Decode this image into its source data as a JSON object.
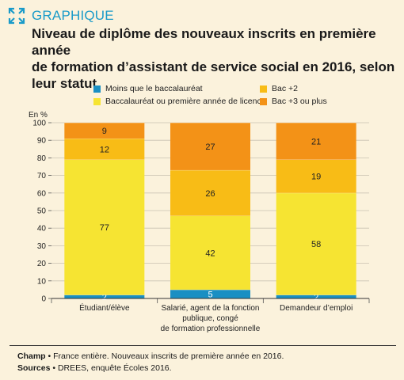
{
  "header": {
    "tag": "GRAPHIQUE",
    "title_lines": [
      "Niveau de diplôme des nouveaux inscrits en première année",
      "de formation d’assistant de service social en 2016, selon",
      "leur statut"
    ]
  },
  "colors": {
    "accent": "#1a9bc9",
    "background": "#fbf2dc",
    "moins_bac": "#1a8fc3",
    "bac": "#f6e432",
    "bac2": "#f8bc16",
    "bac3": "#f39217"
  },
  "chart_data": {
    "type": "bar",
    "stacked": true,
    "unit_label": "En %",
    "ylim": [
      0,
      100
    ],
    "yticks": [
      0,
      10,
      20,
      30,
      40,
      50,
      60,
      70,
      80,
      90,
      100
    ],
    "categories": [
      [
        "Étudiant/élève"
      ],
      [
        "Salarié, agent de la fonction",
        "publique, congé",
        "de formation professionnelle"
      ],
      [
        "Demandeur d’emploi"
      ]
    ],
    "series": [
      {
        "name": "Moins que le baccalauréat",
        "values": [
          2,
          5,
          2
        ],
        "color": "#1a8fc3"
      },
      {
        "name": "Baccalauréat ou première année de licence",
        "values": [
          77,
          42,
          58
        ],
        "color": "#f6e432"
      },
      {
        "name": "Bac +2",
        "values": [
          12,
          26,
          19
        ],
        "color": "#f8bc16"
      },
      {
        "name": "Bac +3 ou plus",
        "values": [
          9,
          27,
          21
        ],
        "color": "#f39217"
      }
    ],
    "grid": true
  },
  "footer": {
    "champ_label": "Champ",
    "champ_text": " • France entière. Nouveaux inscrits de première année en 2016.",
    "sources_label": "Sources",
    "sources_text": " • DREES, enquête Écoles 2016."
  }
}
